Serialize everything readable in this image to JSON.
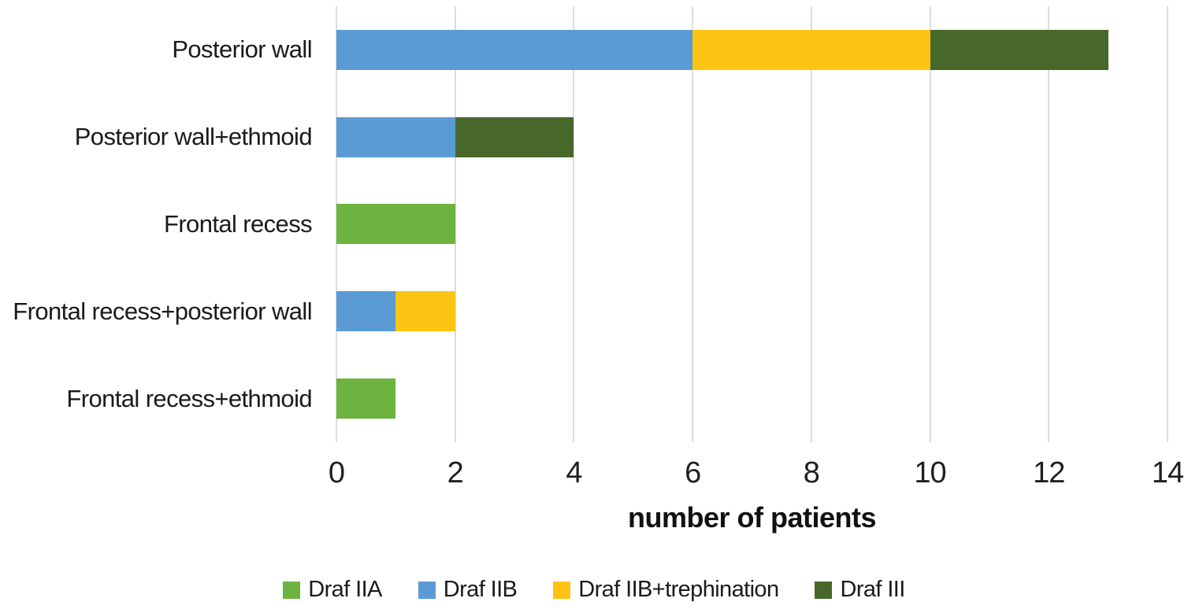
{
  "figure": {
    "background": "#ffffff",
    "text_color": "#1a1a1a"
  },
  "chart_data": {
    "type": "bar",
    "orientation": "horizontal",
    "stacked": true,
    "title": "",
    "xlabel": "number of patients",
    "ylabel": "",
    "categories": [
      "Posterior wall",
      "Posterior wall+ethmoid",
      "Frontal recess",
      "Frontal recess+posterior wall",
      "Frontal recess+ethmoid"
    ],
    "series": [
      {
        "name": "Draf IIA",
        "color": "#6db33f",
        "values": [
          0,
          0,
          2,
          0,
          1
        ]
      },
      {
        "name": "Draf IIB",
        "color": "#5b9bd5",
        "values": [
          6,
          2,
          0,
          1,
          0
        ]
      },
      {
        "name": "Draf IIB+trephination",
        "color": "#fdc413",
        "values": [
          4,
          0,
          0,
          1,
          0
        ]
      },
      {
        "name": "Draf III",
        "color": "#47682a",
        "values": [
          3,
          2,
          0,
          0,
          0
        ]
      }
    ],
    "totals_by_category": [
      13,
      4,
      2,
      2,
      1
    ],
    "xlim": [
      0,
      14
    ],
    "xticks": [
      0,
      2,
      4,
      6,
      8,
      10,
      12,
      14
    ],
    "grid": "vertical",
    "gridline_color": "#dcdcdc",
    "legend_position": "bottom"
  }
}
